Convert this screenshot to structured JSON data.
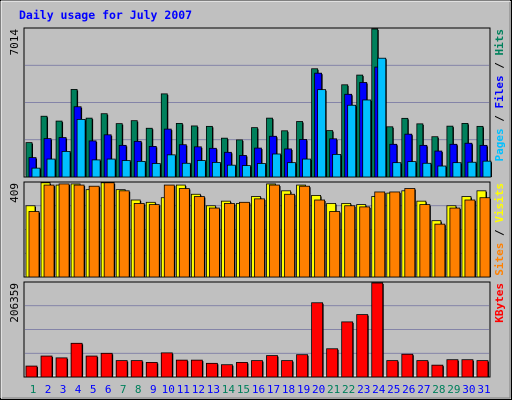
{
  "colors": {
    "background": "#C0C0C0",
    "title": "#0000FF",
    "hits": "#00805C",
    "files": "#0000FF",
    "pages": "#00C0FF",
    "visits": "#FFFF00",
    "sites": "#FF8000",
    "kbytes": "#FF0000",
    "weekend_day_label": "#00805C",
    "weekday_label": "#0000FF"
  },
  "chart_data": {
    "type": "bar",
    "title": "Daily usage for July 2007",
    "categories": [
      "1",
      "2",
      "3",
      "4",
      "5",
      "6",
      "7",
      "8",
      "9",
      "10",
      "11",
      "12",
      "13",
      "14",
      "15",
      "16",
      "17",
      "18",
      "19",
      "20",
      "21",
      "22",
      "23",
      "24",
      "25",
      "26",
      "27",
      "28",
      "29",
      "30",
      "31"
    ],
    "weekend_days": [
      "1",
      "7",
      "8",
      "14",
      "15",
      "21",
      "22",
      "28",
      "29"
    ],
    "panels": [
      {
        "name": "top",
        "ylim": [
          0,
          7014
        ],
        "max_label": "7014",
        "legend": [
          {
            "text": "Pages",
            "color": "#00C0FF"
          },
          {
            "text": " / ",
            "color": "#000000"
          },
          {
            "text": "Files",
            "color": "#0000FF"
          },
          {
            "text": " / ",
            "color": "#000000"
          },
          {
            "text": "Hits",
            "color": "#00805C"
          }
        ],
        "series": [
          {
            "name": "Hits",
            "color": "#00805C",
            "values": [
              1630,
              2880,
              2650,
              4150,
              2790,
              3000,
              2530,
              2670,
              2310,
              3940,
              2540,
              2420,
              2400,
              1840,
              1760,
              2340,
              2790,
              2190,
              2630,
              5130,
              2200,
              4370,
              4830,
              7014,
              2380,
              2780,
              2520,
              1910,
              2410,
              2540,
              2400
            ]
          },
          {
            "name": "Files",
            "color": "#0000FF",
            "values": [
              920,
              1820,
              1870,
              3330,
              1710,
              2000,
              1500,
              1690,
              1450,
              2270,
              1530,
              1430,
              1360,
              1170,
              1020,
              1370,
              1930,
              1330,
              1780,
              4920,
              1810,
              3920,
              4480,
              5210,
              1550,
              2030,
              1500,
              1230,
              1550,
              1600,
              1500
            ]
          },
          {
            "name": "Pages",
            "color": "#00C0FF",
            "values": [
              420,
              850,
              1210,
              2730,
              810,
              850,
              780,
              740,
              640,
              1050,
              650,
              780,
              690,
              560,
              540,
              640,
              1090,
              680,
              850,
              4140,
              1070,
              3400,
              3650,
              5630,
              680,
              730,
              650,
              520,
              680,
              700,
              750
            ]
          }
        ]
      },
      {
        "name": "middle",
        "ylim": [
          0,
          409
        ],
        "max_label": "409",
        "legend": [
          {
            "text": "Sites",
            "color": "#FF8000"
          },
          {
            "text": " / ",
            "color": "#000000"
          },
          {
            "text": "Visits",
            "color": "#FFFF00"
          }
        ],
        "series": [
          {
            "name": "Visits",
            "color": "#FFFF00",
            "values": [
              310,
              410,
              400,
              405,
              380,
              410,
              380,
              335,
              325,
              345,
              400,
              360,
              310,
              330,
              320,
              350,
              405,
              375,
              400,
              355,
              320,
              320,
              315,
              350,
              365,
              375,
              330,
              245,
              310,
              350,
              375
            ]
          },
          {
            "name": "Sites",
            "color": "#FF8000",
            "values": [
              285,
              400,
              405,
              400,
              395,
              410,
              375,
              320,
              315,
              400,
              385,
              350,
              300,
              320,
              325,
              340,
              400,
              360,
              395,
              335,
              285,
              310,
              305,
              370,
              370,
              385,
              315,
              230,
              300,
              335,
              345
            ]
          }
        ]
      },
      {
        "name": "bottom",
        "ylim": [
          0,
          206359
        ],
        "max_label": "206359",
        "legend": [
          {
            "text": "KBytes",
            "color": "#FF0000"
          }
        ],
        "series": [
          {
            "name": "KBytes",
            "color": "#FF0000",
            "values": [
              24000,
              46000,
              42000,
              74000,
              46000,
              52000,
              36000,
              36000,
              32000,
              53000,
              37000,
              37000,
              30000,
              27000,
              32000,
              36000,
              47000,
              36000,
              49000,
              163000,
              62000,
              121000,
              137000,
              206359,
              36000,
              50000,
              36000,
              26000,
              38000,
              38000,
              36000
            ]
          }
        ]
      }
    ]
  }
}
